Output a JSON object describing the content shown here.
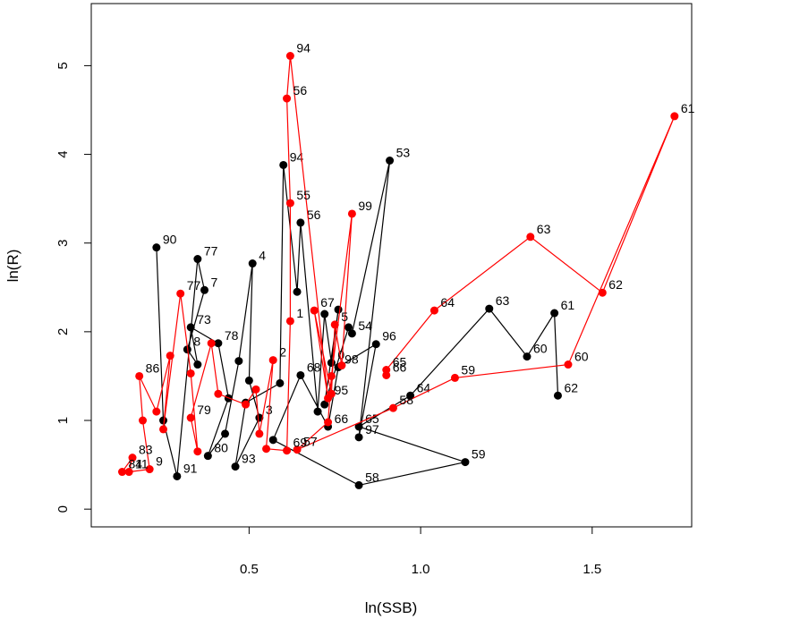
{
  "chart_data": {
    "type": "line",
    "xlabel": "ln(SSB)",
    "ylabel": "ln(R)",
    "xlim": [
      0.04,
      1.79
    ],
    "ylim": [
      -0.2,
      5.7
    ],
    "x_ticks": [
      0.5,
      1.0,
      1.5
    ],
    "x_tick_labels": [
      "0.5",
      "1.0",
      "1.5"
    ],
    "y_ticks": [
      0,
      1,
      2,
      3,
      4,
      5
    ],
    "y_tick_labels": [
      "0",
      "1",
      "2",
      "3",
      "4",
      "5"
    ],
    "grid": false,
    "series": [
      {
        "color": "#000000",
        "points": [
          {
            "x": 0.23,
            "y": 2.95,
            "label": "90"
          },
          {
            "x": 0.25,
            "y": 1.0,
            "label": ""
          },
          {
            "x": 0.29,
            "y": 0.37,
            "label": "91"
          },
          {
            "x": 0.35,
            "y": 2.82,
            "label": "77"
          },
          {
            "x": 0.37,
            "y": 2.47,
            "label": "7"
          },
          {
            "x": 0.32,
            "y": 1.8,
            "label": "8"
          },
          {
            "x": 0.35,
            "y": 1.63,
            "label": ""
          },
          {
            "x": 0.33,
            "y": 2.05,
            "label": "73"
          },
          {
            "x": 0.41,
            "y": 1.87,
            "label": "78"
          },
          {
            "x": 0.44,
            "y": 1.25,
            "label": ""
          },
          {
            "x": 0.38,
            "y": 0.6,
            "label": "80"
          },
          {
            "x": 0.43,
            "y": 0.85,
            "label": ""
          },
          {
            "x": 0.47,
            "y": 1.67,
            "label": ""
          },
          {
            "x": 0.51,
            "y": 2.77,
            "label": "4"
          },
          {
            "x": 0.5,
            "y": 1.45,
            "label": ""
          },
          {
            "x": 0.53,
            "y": 1.03,
            "label": "3"
          },
          {
            "x": 0.46,
            "y": 0.48,
            "label": "93"
          },
          {
            "x": 0.49,
            "y": 1.2,
            "label": ""
          },
          {
            "x": 0.59,
            "y": 1.42,
            "label": ""
          },
          {
            "x": 0.6,
            "y": 3.88,
            "label": "94"
          },
          {
            "x": 0.64,
            "y": 2.45,
            "label": ""
          },
          {
            "x": 0.65,
            "y": 3.23,
            "label": "56"
          },
          {
            "x": 0.7,
            "y": 1.1,
            "label": ""
          },
          {
            "x": 0.72,
            "y": 2.2,
            "label": ""
          },
          {
            "x": 0.74,
            "y": 1.65,
            "label": "0"
          },
          {
            "x": 0.76,
            "y": 2.25,
            "label": ""
          },
          {
            "x": 0.72,
            "y": 1.18,
            "label": ""
          },
          {
            "x": 0.79,
            "y": 2.05,
            "label": ""
          },
          {
            "x": 0.8,
            "y": 1.98,
            "label": "54"
          },
          {
            "x": 0.91,
            "y": 3.93,
            "label": "53"
          },
          {
            "x": 0.82,
            "y": 0.81,
            "label": "97"
          },
          {
            "x": 0.87,
            "y": 1.86,
            "label": "96"
          },
          {
            "x": 0.76,
            "y": 1.6,
            "label": "98"
          },
          {
            "x": 0.73,
            "y": 0.93,
            "label": "66"
          },
          {
            "x": 0.65,
            "y": 1.51,
            "label": "68"
          },
          {
            "x": 0.57,
            "y": 0.78,
            "label": ""
          },
          {
            "x": 0.82,
            "y": 0.27,
            "label": "58"
          },
          {
            "x": 1.13,
            "y": 0.53,
            "label": "59"
          },
          {
            "x": 0.82,
            "y": 0.93,
            "label": "65"
          },
          {
            "x": 0.97,
            "y": 1.28,
            "label": "64"
          },
          {
            "x": 1.2,
            "y": 2.26,
            "label": "63"
          },
          {
            "x": 1.31,
            "y": 1.72,
            "label": "60"
          },
          {
            "x": 1.39,
            "y": 2.21,
            "label": "61"
          },
          {
            "x": 1.4,
            "y": 1.28,
            "label": "62"
          }
        ]
      },
      {
        "color": "#ff0000",
        "points": [
          {
            "x": 0.13,
            "y": 0.42,
            "label": "84"
          },
          {
            "x": 0.16,
            "y": 0.58,
            "label": "83"
          },
          {
            "x": 0.15,
            "y": 0.42,
            "label": "11"
          },
          {
            "x": 0.21,
            "y": 0.45,
            "label": "9"
          },
          {
            "x": 0.19,
            "y": 1.0,
            "label": ""
          },
          {
            "x": 0.18,
            "y": 1.5,
            "label": "86"
          },
          {
            "x": 0.23,
            "y": 1.1,
            "label": ""
          },
          {
            "x": 0.27,
            "y": 1.73,
            "label": ""
          },
          {
            "x": 0.25,
            "y": 0.9,
            "label": ""
          },
          {
            "x": 0.3,
            "y": 2.43,
            "label": "77"
          },
          {
            "x": 0.33,
            "y": 1.53,
            "label": ""
          },
          {
            "x": 0.35,
            "y": 0.65,
            "label": ""
          },
          {
            "x": 0.33,
            "y": 1.03,
            "label": "79"
          },
          {
            "x": 0.39,
            "y": 1.87,
            "label": ""
          },
          {
            "x": 0.41,
            "y": 1.3,
            "label": ""
          },
          {
            "x": 0.49,
            "y": 1.18,
            "label": ""
          },
          {
            "x": 0.52,
            "y": 1.35,
            "label": ""
          },
          {
            "x": 0.53,
            "y": 0.85,
            "label": ""
          },
          {
            "x": 0.57,
            "y": 1.68,
            "label": "2"
          },
          {
            "x": 0.55,
            "y": 0.68,
            "label": ""
          },
          {
            "x": 0.61,
            "y": 0.66,
            "label": "69"
          },
          {
            "x": 0.62,
            "y": 2.12,
            "label": "1"
          },
          {
            "x": 0.62,
            "y": 3.45,
            "label": "55"
          },
          {
            "x": 0.61,
            "y": 4.63,
            "label": "56"
          },
          {
            "x": 0.62,
            "y": 5.11,
            "label": "94"
          },
          {
            "x": 0.73,
            "y": 1.25,
            "label": "95"
          },
          {
            "x": 0.69,
            "y": 2.24,
            "label": "67"
          },
          {
            "x": 0.74,
            "y": 1.3,
            "label": ""
          },
          {
            "x": 0.75,
            "y": 2.08,
            "label": "5"
          },
          {
            "x": 0.77,
            "y": 1.62,
            "label": ""
          },
          {
            "x": 0.8,
            "y": 3.33,
            "label": "99"
          },
          {
            "x": 0.74,
            "y": 1.5,
            "label": ""
          },
          {
            "x": 0.73,
            "y": 0.98,
            "label": ""
          },
          {
            "x": 0.64,
            "y": 0.67,
            "label": "57"
          },
          {
            "x": 0.92,
            "y": 1.14,
            "label": "58"
          },
          {
            "x": 1.1,
            "y": 1.48,
            "label": "59"
          },
          {
            "x": 1.43,
            "y": 1.63,
            "label": "60"
          },
          {
            "x": 1.74,
            "y": 4.43,
            "label": "61"
          },
          {
            "x": 1.53,
            "y": 2.44,
            "label": "62"
          },
          {
            "x": 1.32,
            "y": 3.07,
            "label": "63"
          },
          {
            "x": 1.04,
            "y": 2.24,
            "label": "64"
          },
          {
            "x": 0.9,
            "y": 1.57,
            "label": "65"
          },
          {
            "x": 0.9,
            "y": 1.51,
            "label": "66"
          }
        ]
      }
    ]
  }
}
